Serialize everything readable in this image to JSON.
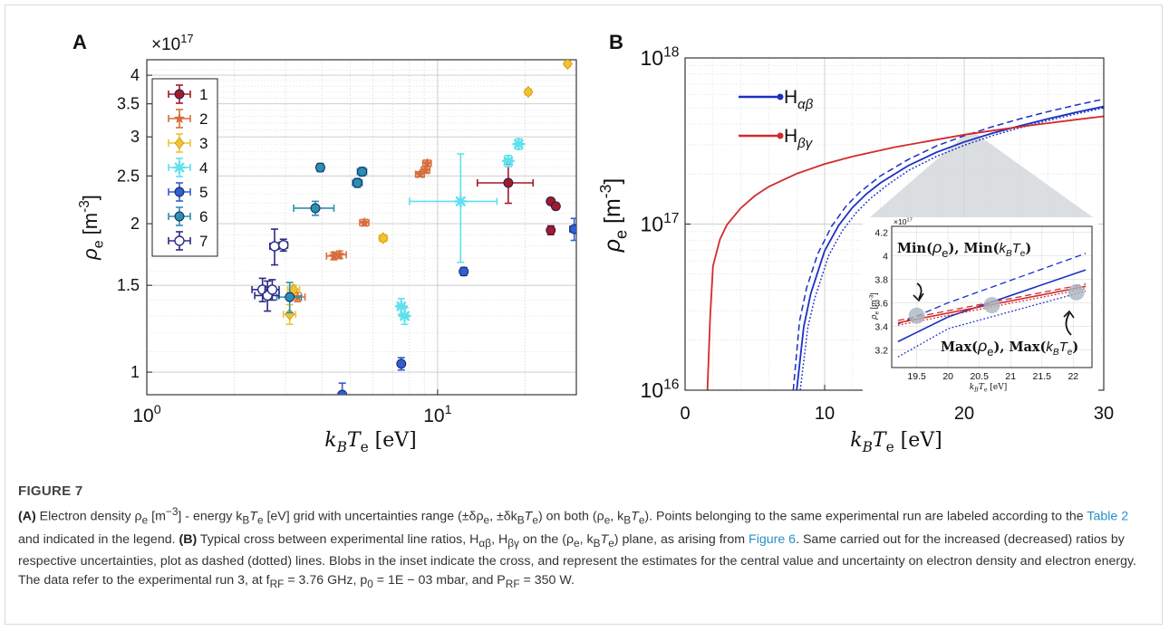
{
  "figure": {
    "panel_a_letter": "A",
    "panel_b_letter": "B",
    "caption_title": "FIGURE 7",
    "caption": {
      "a_tag": "(A)",
      "a_text_1": " Electron density ρ",
      "a_text_2": "e",
      "a_text_3": " [m",
      "a_text_4": "−3",
      "a_text_5": "] - energy k",
      "a_text_6": "B",
      "a_text_7": "T",
      "a_text_8": "e",
      "a_text_9": " [eV] grid with uncertainties range (±δρ",
      "a_text_10": "e",
      "a_text_11": ", ±δk",
      "a_text_12": "B",
      "a_text_13": "T",
      "a_text_14": "e",
      "a_text_15": ") on both (ρ",
      "a_text_16": "e",
      "a_text_17": ", k",
      "a_text_18": "B",
      "a_text_19": "T",
      "a_text_20": "e",
      "a_text_21": "). Points belonging to the same experimental run are labeled according to the ",
      "link_table": "Table 2",
      "a_text_22": " and indicated in the legend. ",
      "b_tag": "(B)",
      "b_text_1": " Typical cross between experimental line ratios, H",
      "b_text_2": "αβ",
      "b_text_3": ", H",
      "b_text_4": "βγ",
      "b_text_5": " on the (ρ",
      "b_text_6": "e",
      "b_text_7": ", k",
      "b_text_8": "B",
      "b_text_9": "T",
      "b_text_10": "e",
      "b_text_11": ") plane, as arising from ",
      "link_figure": "Figure 6",
      "b_text_12": ". Same carried out for the increased (decreased) ratios by respective uncertainties, plot as dashed (dotted) lines. Blobs in the inset indicate the cross, and represent the estimates for the central value and uncertainty on electron density and electron energy. The data refer to the experimental run 3, at f",
      "b_text_13": "RF",
      "b_text_14": " = 3.76 GHz, p",
      "b_text_15": "0",
      "b_text_16": " = 1E − 03 mbar, and P",
      "b_text_17": "RF",
      "b_text_18": " = 350 W."
    }
  },
  "chart_data": [
    {
      "type": "scatter",
      "panel": "A",
      "xlabel": "k_B T_e [eV]",
      "ylabel": "ρ_e [m^-3]",
      "y_multiplier": "×10^17",
      "x_scale": "log",
      "y_scale": "log",
      "xlim": [
        1,
        30
      ],
      "ylim": [
        0.9,
        4.3
      ],
      "x_ticks": [
        1,
        10
      ],
      "x_tick_labels": [
        "10^0",
        "10^1"
      ],
      "y_ticks": [
        1,
        1.5,
        2,
        2.5,
        3,
        3.5,
        4
      ],
      "y_tick_labels": [
        "1",
        "1.5",
        "2",
        "2.5",
        "3",
        "3.5",
        "4"
      ],
      "grid": true,
      "legend_position": "top-left",
      "series": [
        {
          "name": "1",
          "color": "#a31a28",
          "marker": "circle",
          "points": [
            {
              "x": 17.5,
              "y": 2.42,
              "xerr": 3.8,
              "yerr": 0.22
            },
            {
              "x": 24.5,
              "y": 2.22,
              "xerr": 0.4,
              "yerr": 0.03
            },
            {
              "x": 25.5,
              "y": 2.17,
              "xerr": 0.4,
              "yerr": 0.03
            },
            {
              "x": 24.5,
              "y": 1.94,
              "xerr": 0.4,
              "yerr": 0.04
            }
          ]
        },
        {
          "name": "2",
          "color": "#d86d3c",
          "marker": "star",
          "points": [
            {
              "x": 3.3,
              "y": 1.42,
              "xerr": 0.2,
              "yerr": 0.03
            },
            {
              "x": 4.4,
              "y": 1.72,
              "xerr": 0.25,
              "yerr": 0.03
            },
            {
              "x": 4.6,
              "y": 1.73,
              "xerr": 0.25,
              "yerr": 0.03
            },
            {
              "x": 5.6,
              "y": 2.01,
              "xerr": 0.2,
              "yerr": 0.03
            },
            {
              "x": 8.7,
              "y": 2.52,
              "xerr": 0.3,
              "yerr": 0.03
            },
            {
              "x": 9.1,
              "y": 2.57,
              "xerr": 0.3,
              "yerr": 0.04
            },
            {
              "x": 9.2,
              "y": 2.65,
              "xerr": 0.3,
              "yerr": 0.04
            }
          ]
        },
        {
          "name": "3",
          "color": "#f1c232",
          "marker": "diamond",
          "points": [
            {
              "x": 3.1,
              "y": 1.31,
              "xerr": 0.15,
              "yerr": 0.06
            },
            {
              "x": 3.2,
              "y": 1.47,
              "xerr": 0.15,
              "yerr": 0.03
            },
            {
              "x": 6.5,
              "y": 1.87,
              "xerr": 0.2,
              "yerr": 0.03
            },
            {
              "x": 20.5,
              "y": 3.7,
              "xerr": 0.5,
              "yerr": 0.05
            },
            {
              "x": 28.0,
              "y": 4.22,
              "xerr": 0.5,
              "yerr": 0.05
            }
          ]
        },
        {
          "name": "4",
          "color": "#5ee0ee",
          "marker": "asterisk",
          "points": [
            {
              "x": 7.5,
              "y": 1.36,
              "xerr": 0.2,
              "yerr": 0.05
            },
            {
              "x": 7.7,
              "y": 1.3,
              "xerr": 0.2,
              "yerr": 0.05
            },
            {
              "x": 12.0,
              "y": 2.22,
              "xerr": 4.0,
              "yerr": 0.55
            },
            {
              "x": 17.5,
              "y": 2.68,
              "xerr": 0.5,
              "yerr": 0.07
            },
            {
              "x": 19.0,
              "y": 2.9,
              "xerr": 0.5,
              "yerr": 0.07
            }
          ]
        },
        {
          "name": "5",
          "color": "#2f5fd0",
          "marker": "circle",
          "points": [
            {
              "x": 4.7,
              "y": 0.9,
              "xerr": 0.1,
              "yerr": 0.05
            },
            {
              "x": 7.5,
              "y": 1.04,
              "xerr": 0.15,
              "yerr": 0.03
            },
            {
              "x": 12.3,
              "y": 1.6,
              "xerr": 0.2,
              "yerr": 0.03
            },
            {
              "x": 29.5,
              "y": 1.95,
              "xerr": 1.0,
              "yerr": 0.1
            }
          ]
        },
        {
          "name": "6",
          "color": "#2b8fb0",
          "marker": "circle",
          "points": [
            {
              "x": 3.1,
              "y": 1.42,
              "xerr": 0.3,
              "yerr": 0.1
            },
            {
              "x": 3.8,
              "y": 2.15,
              "xerr": 0.6,
              "yerr": 0.07
            },
            {
              "x": 3.95,
              "y": 2.6,
              "xerr": 0.1,
              "yerr": 0.05
            },
            {
              "x": 5.3,
              "y": 2.42,
              "xerr": 0.2,
              "yerr": 0.05
            },
            {
              "x": 5.5,
              "y": 2.55,
              "xerr": 0.2,
              "yerr": 0.05
            }
          ]
        },
        {
          "name": "7",
          "color": "#2b2c86",
          "marker": "open-circle",
          "points": [
            {
              "x": 2.5,
              "y": 1.47,
              "xerr": 0.2,
              "yerr": 0.08
            },
            {
              "x": 2.6,
              "y": 1.43,
              "xerr": 0.25,
              "yerr": 0.1
            },
            {
              "x": 2.7,
              "y": 1.47,
              "xerr": 0.15,
              "yerr": 0.07
            },
            {
              "x": 2.75,
              "y": 1.8,
              "xerr": 0.1,
              "yerr": 0.15
            },
            {
              "x": 2.95,
              "y": 1.81,
              "xerr": 0.1,
              "yerr": 0.05
            }
          ]
        }
      ]
    },
    {
      "type": "line",
      "panel": "B",
      "xlabel": "k_B T_e [eV]",
      "ylabel": "ρ_e [m^-3]",
      "x_scale": "linear",
      "y_scale": "log",
      "xlim": [
        0,
        30
      ],
      "ylim": [
        1e+16,
        1e+18
      ],
      "x_ticks": [
        0,
        10,
        20,
        30
      ],
      "y_ticks": [
        1e+16,
        1e+17,
        1e+18
      ],
      "y_tick_labels": [
        "10^16",
        "10^17",
        "10^18"
      ],
      "grid": true,
      "legend_position": "top-left",
      "series": [
        {
          "name": "H_αβ",
          "color": "#1a2fc4",
          "style": "solid",
          "x": [
            8,
            8.5,
            9,
            10,
            11,
            12,
            13,
            14,
            16,
            18,
            20,
            22,
            24,
            26,
            28,
            30
          ],
          "y": [
            1e+16,
            2.4e+16,
            3.8e+16,
            6.9e+16,
            9.8e+16,
            1.26e+17,
            1.52e+17,
            1.77e+17,
            2.25e+17,
            2.7e+17,
            3.12e+17,
            3.52e+17,
            3.9e+17,
            4.3e+17,
            4.7e+17,
            5.1e+17
          ]
        },
        {
          "name": "H_αβ (+unc)",
          "color": "#1a2fc4",
          "style": "dashed",
          "x": [
            7.75,
            8.2,
            8.7,
            9.5,
            10.5,
            11.5,
            12.5,
            14,
            16,
            18,
            20,
            22,
            24,
            26,
            28,
            30
          ],
          "y": [
            1e+16,
            2.6e+16,
            4.1e+16,
            6.6e+16,
            9.7e+16,
            1.27e+17,
            1.55e+17,
            1.95e+17,
            2.45e+17,
            2.95e+17,
            3.4e+17,
            3.85e+17,
            4.3e+17,
            4.75e+17,
            5.2e+17,
            5.65e+17
          ]
        },
        {
          "name": "H_αβ (−unc)",
          "color": "#1a2fc4",
          "style": "dotted",
          "x": [
            8.25,
            8.8,
            9.3,
            10.3,
            11.3,
            12.3,
            13.3,
            14.5,
            16,
            18,
            20,
            22,
            24,
            26,
            28,
            30
          ],
          "y": [
            1e+16,
            2.4e+16,
            3.6e+16,
            6.5e+16,
            9.2e+16,
            1.18e+17,
            1.43e+17,
            1.72e+17,
            2.1e+17,
            2.55e+17,
            2.98e+17,
            3.4e+17,
            3.8e+17,
            4.2e+17,
            4.6e+17,
            5e+17
          ]
        },
        {
          "name": "H_βγ",
          "color": "#d42a2a",
          "style": "solid",
          "x": [
            1.6,
            1.8,
            2.0,
            2.5,
            3,
            4,
            5,
            6,
            8,
            10,
            12,
            15,
            18,
            20,
            22,
            25,
            28,
            30
          ],
          "y": [
            1e+16,
            2.8e+16,
            5.6e+16,
            8.1e+16,
            9.9e+16,
            1.25e+17,
            1.48e+17,
            1.68e+17,
            2.01e+17,
            2.3e+17,
            2.55e+17,
            2.9e+17,
            3.22e+17,
            3.45e+17,
            3.65e+17,
            3.95e+17,
            4.25e+17,
            4.45e+17
          ]
        }
      ],
      "inset": {
        "type": "line",
        "y_multiplier": "×10^17",
        "xlabel": "k_B T_e [eV]",
        "ylabel": "ρ_e [m^-3]",
        "xlim": [
          19.1,
          22.3
        ],
        "ylim": [
          3.05,
          4.25
        ],
        "x_ticks": [
          19.5,
          20,
          20.5,
          21,
          21.5,
          22
        ],
        "y_ticks": [
          3.2,
          3.4,
          3.6,
          3.8,
          4,
          4.2
        ],
        "annotations": [
          "Min(ρ_e), Min(k_B T_e)",
          "Max(ρ_e), Max(k_B T_e)"
        ],
        "series": [
          {
            "name": "H_αβ",
            "color": "#1a2fc4",
            "style": "solid",
            "x": [
              19.2,
              20,
              22.2
            ],
            "y": [
              3.27,
              3.48,
              3.88
            ]
          },
          {
            "name": "H_αβ (+unc)",
            "color": "#1a2fc4",
            "style": "dashed",
            "x": [
              19.2,
              20,
              22.2
            ],
            "y": [
              3.42,
              3.6,
              4.02
            ]
          },
          {
            "name": "H_αβ (−unc)",
            "color": "#1a2fc4",
            "style": "dotted",
            "x": [
              19.2,
              20,
              22.2
            ],
            "y": [
              3.14,
              3.38,
              3.7
            ]
          },
          {
            "name": "H_βγ",
            "color": "#d42a2a",
            "style": "solid",
            "x": [
              19.2,
              22.2
            ],
            "y": [
              3.43,
              3.74
            ]
          },
          {
            "name": "H_βγ (+unc)",
            "color": "#d42a2a",
            "style": "dashed",
            "x": [
              19.2,
              22.2
            ],
            "y": [
              3.45,
              3.76
            ]
          },
          {
            "name": "H_βγ (−unc)",
            "color": "#d42a2a",
            "style": "dotted",
            "x": [
              19.2,
              22.2
            ],
            "y": [
              3.41,
              3.72
            ]
          }
        ],
        "cross_points": [
          {
            "x": 19.5,
            "y": 3.49
          },
          {
            "x": 20.7,
            "y": 3.58
          },
          {
            "x": 22.05,
            "y": 3.69
          }
        ]
      }
    }
  ]
}
